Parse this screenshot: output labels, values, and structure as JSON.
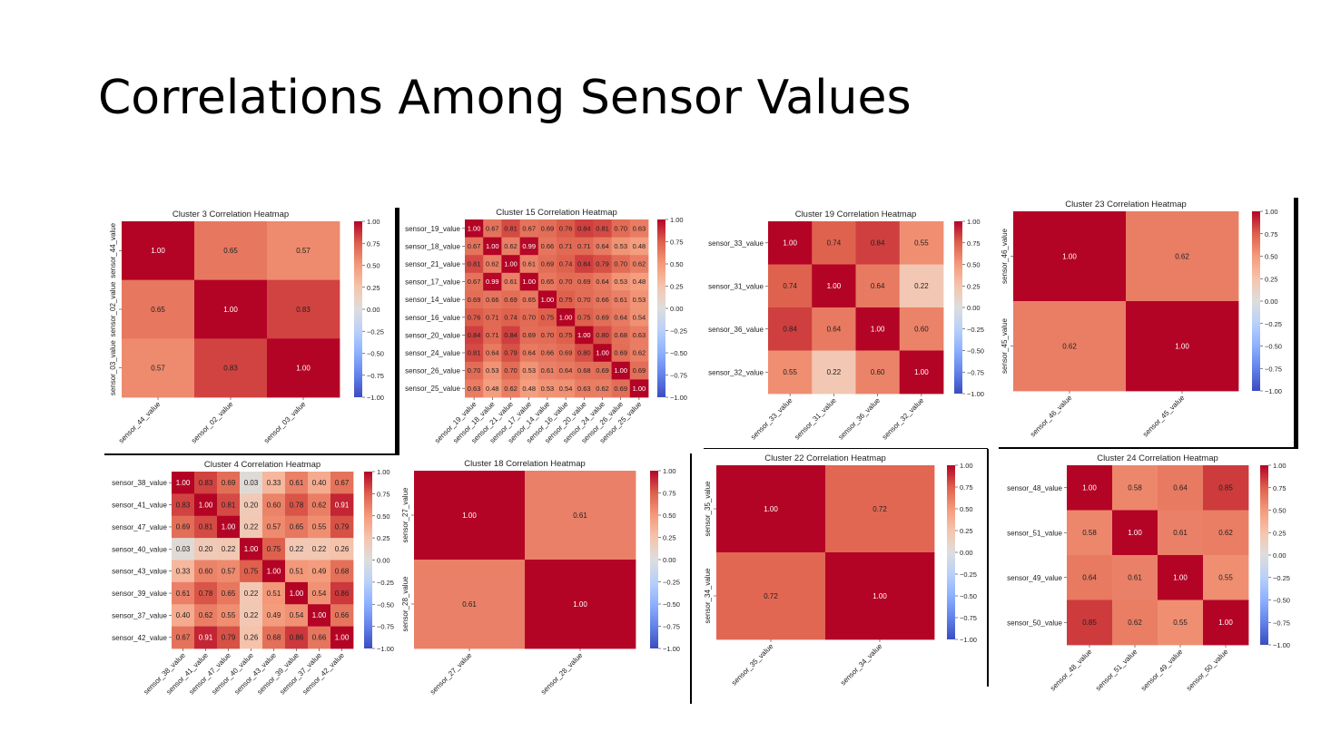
{
  "slide": {
    "title": "Correlations Among Sensor Values"
  },
  "colorbar": {
    "ticks": [
      "1.00",
      "0.75",
      "0.50",
      "0.25",
      "0.00",
      "−0.25",
      "−0.50",
      "−0.75",
      "−1.00"
    ]
  },
  "colors": {
    "high": "#b40426",
    "mid": "#dddddd",
    "low": "#3b4cc0"
  },
  "chart_data": [
    {
      "type": "heatmap",
      "title": "Cluster 3 Correlation Heatmap",
      "labels": [
        "sensor_44_value",
        "sensor_02_value",
        "sensor_03_value"
      ],
      "values": [
        [
          1.0,
          0.65,
          0.57
        ],
        [
          0.65,
          1.0,
          0.83
        ],
        [
          0.57,
          0.83,
          1.0
        ]
      ],
      "ylabels_rotated": true,
      "vmin": -1,
      "vmax": 1
    },
    {
      "type": "heatmap",
      "title": "Cluster 15 Correlation Heatmap",
      "labels": [
        "sensor_19_value",
        "sensor_18_value",
        "sensor_21_value",
        "sensor_17_value",
        "sensor_14_value",
        "sensor_16_value",
        "sensor_20_value",
        "sensor_24_value",
        "sensor_26_value",
        "sensor_25_value"
      ],
      "values": [
        [
          1.0,
          0.67,
          0.81,
          0.67,
          0.69,
          0.76,
          0.84,
          0.81,
          0.7,
          0.63
        ],
        [
          0.67,
          1.0,
          0.62,
          0.99,
          0.66,
          0.71,
          0.71,
          0.64,
          0.53,
          0.48
        ],
        [
          0.81,
          0.62,
          1.0,
          0.61,
          0.69,
          0.74,
          0.84,
          0.79,
          0.7,
          0.62
        ],
        [
          0.67,
          0.99,
          0.61,
          1.0,
          0.65,
          0.7,
          0.69,
          0.64,
          0.53,
          0.48
        ],
        [
          0.69,
          0.66,
          0.69,
          0.65,
          1.0,
          0.75,
          0.7,
          0.66,
          0.61,
          0.53
        ],
        [
          0.76,
          0.71,
          0.74,
          0.7,
          0.75,
          1.0,
          0.75,
          0.69,
          0.64,
          0.54
        ],
        [
          0.84,
          0.71,
          0.84,
          0.69,
          0.7,
          0.75,
          1.0,
          0.8,
          0.68,
          0.63
        ],
        [
          0.81,
          0.64,
          0.79,
          0.64,
          0.66,
          0.69,
          0.8,
          1.0,
          0.69,
          0.62
        ],
        [
          0.7,
          0.53,
          0.7,
          0.53,
          0.61,
          0.64,
          0.68,
          0.69,
          1.0,
          0.69
        ],
        [
          0.63,
          0.48,
          0.62,
          0.48,
          0.53,
          0.54,
          0.63,
          0.62,
          0.69,
          1.0
        ]
      ],
      "ylabels_rotated": false,
      "vmin": -1,
      "vmax": 1
    },
    {
      "type": "heatmap",
      "title": "Cluster 19 Correlation Heatmap",
      "labels": [
        "sensor_33_value",
        "sensor_31_value",
        "sensor_36_value",
        "sensor_32_value"
      ],
      "values": [
        [
          1.0,
          0.74,
          0.84,
          0.55
        ],
        [
          0.74,
          1.0,
          0.64,
          0.22
        ],
        [
          0.84,
          0.64,
          1.0,
          0.6
        ],
        [
          0.55,
          0.22,
          0.6,
          1.0
        ]
      ],
      "ylabels_rotated": false,
      "vmin": -1,
      "vmax": 1
    },
    {
      "type": "heatmap",
      "title": "Cluster 23 Correlation Heatmap",
      "labels": [
        "sensor_46_value",
        "sensor_45_value"
      ],
      "values": [
        [
          1.0,
          0.62
        ],
        [
          0.62,
          1.0
        ]
      ],
      "ylabels_rotated": true,
      "vmin": -1,
      "vmax": 1
    },
    {
      "type": "heatmap",
      "title": "Cluster 4 Correlation Heatmap",
      "labels": [
        "sensor_38_value",
        "sensor_41_value",
        "sensor_47_value",
        "sensor_40_value",
        "sensor_43_value",
        "sensor_39_value",
        "sensor_37_value",
        "sensor_42_value"
      ],
      "values": [
        [
          1.0,
          0.83,
          0.69,
          0.03,
          0.33,
          0.61,
          0.4,
          0.67
        ],
        [
          0.83,
          1.0,
          0.81,
          0.2,
          0.6,
          0.78,
          0.62,
          0.91
        ],
        [
          0.69,
          0.81,
          1.0,
          0.22,
          0.57,
          0.65,
          0.55,
          0.79
        ],
        [
          0.03,
          0.2,
          0.22,
          1.0,
          0.75,
          0.22,
          0.22,
          0.26
        ],
        [
          0.33,
          0.6,
          0.57,
          0.75,
          1.0,
          0.51,
          0.49,
          0.68
        ],
        [
          0.61,
          0.78,
          0.65,
          0.22,
          0.51,
          1.0,
          0.54,
          0.86
        ],
        [
          0.4,
          0.62,
          0.55,
          0.22,
          0.49,
          0.54,
          1.0,
          0.66
        ],
        [
          0.67,
          0.91,
          0.79,
          0.26,
          0.68,
          0.86,
          0.66,
          1.0
        ]
      ],
      "ylabels_rotated": false,
      "vmin": -1,
      "vmax": 1
    },
    {
      "type": "heatmap",
      "title": "Cluster 18 Correlation Heatmap",
      "labels": [
        "sensor_27_value",
        "sensor_28_value"
      ],
      "values": [
        [
          1.0,
          0.61
        ],
        [
          0.61,
          1.0
        ]
      ],
      "ylabels_rotated": true,
      "vmin": -1,
      "vmax": 1
    },
    {
      "type": "heatmap",
      "title": "Cluster 22 Correlation Heatmap",
      "labels": [
        "sensor_35_value",
        "sensor_34_value"
      ],
      "values": [
        [
          1.0,
          0.72
        ],
        [
          0.72,
          1.0
        ]
      ],
      "ylabels_rotated": true,
      "vmin": -1,
      "vmax": 1
    },
    {
      "type": "heatmap",
      "title": "Cluster 24 Correlation Heatmap",
      "labels": [
        "sensor_48_value",
        "sensor_51_value",
        "sensor_49_value",
        "sensor_50_value"
      ],
      "values": [
        [
          1.0,
          0.58,
          0.64,
          0.85
        ],
        [
          0.58,
          1.0,
          0.61,
          0.62
        ],
        [
          0.64,
          0.61,
          1.0,
          0.55
        ],
        [
          0.85,
          0.62,
          0.55,
          1.0
        ]
      ],
      "ylabels_rotated": false,
      "vmin": -1,
      "vmax": 1
    }
  ]
}
